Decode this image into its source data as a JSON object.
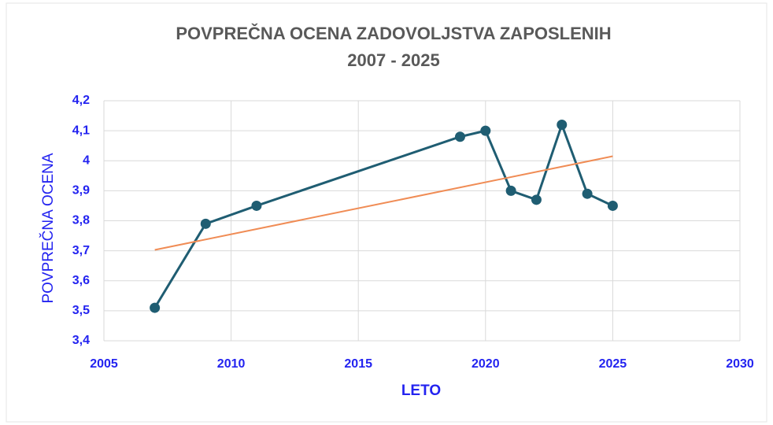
{
  "chart_data": {
    "type": "line",
    "title": "POVPREČNA OCENA ZADOVOLJSTVA ZAPOSLENIH",
    "subtitle": "2007 - 2025",
    "x_label": "LETO",
    "y_label": "POVPREČNA OCENA",
    "series": [
      {
        "color": "#1f5d72",
        "markers": true,
        "x": [
          2007,
          2009,
          2011,
          2019,
          2020,
          2021,
          2022,
          2023,
          2024,
          2025
        ],
        "values": [
          3.51,
          3.79,
          3.85,
          4.08,
          4.1,
          3.9,
          3.87,
          4.12,
          3.89,
          3.85
        ]
      },
      {
        "color": "#f08c55",
        "markers": false,
        "x": [
          2007,
          2025
        ],
        "values": [
          3.703,
          4.015
        ]
      }
    ],
    "xlim": [
      2005,
      2030
    ],
    "xticks": [
      2005,
      2010,
      2015,
      2020,
      2025,
      2030
    ],
    "ylim": [
      3.4,
      4.2
    ],
    "yticks": [
      {
        "value": 3.4,
        "label": "3,4"
      },
      {
        "value": 3.5,
        "label": "3,5"
      },
      {
        "value": 3.6,
        "label": "3,6"
      },
      {
        "value": 3.7,
        "label": "3,7"
      },
      {
        "value": 3.8,
        "label": "3,8"
      },
      {
        "value": 3.9,
        "label": "3,9"
      },
      4,
      {
        "value": 4.1,
        "label": "4,1"
      },
      {
        "value": 4.2,
        "label": "4,2"
      }
    ],
    "grid": true
  }
}
